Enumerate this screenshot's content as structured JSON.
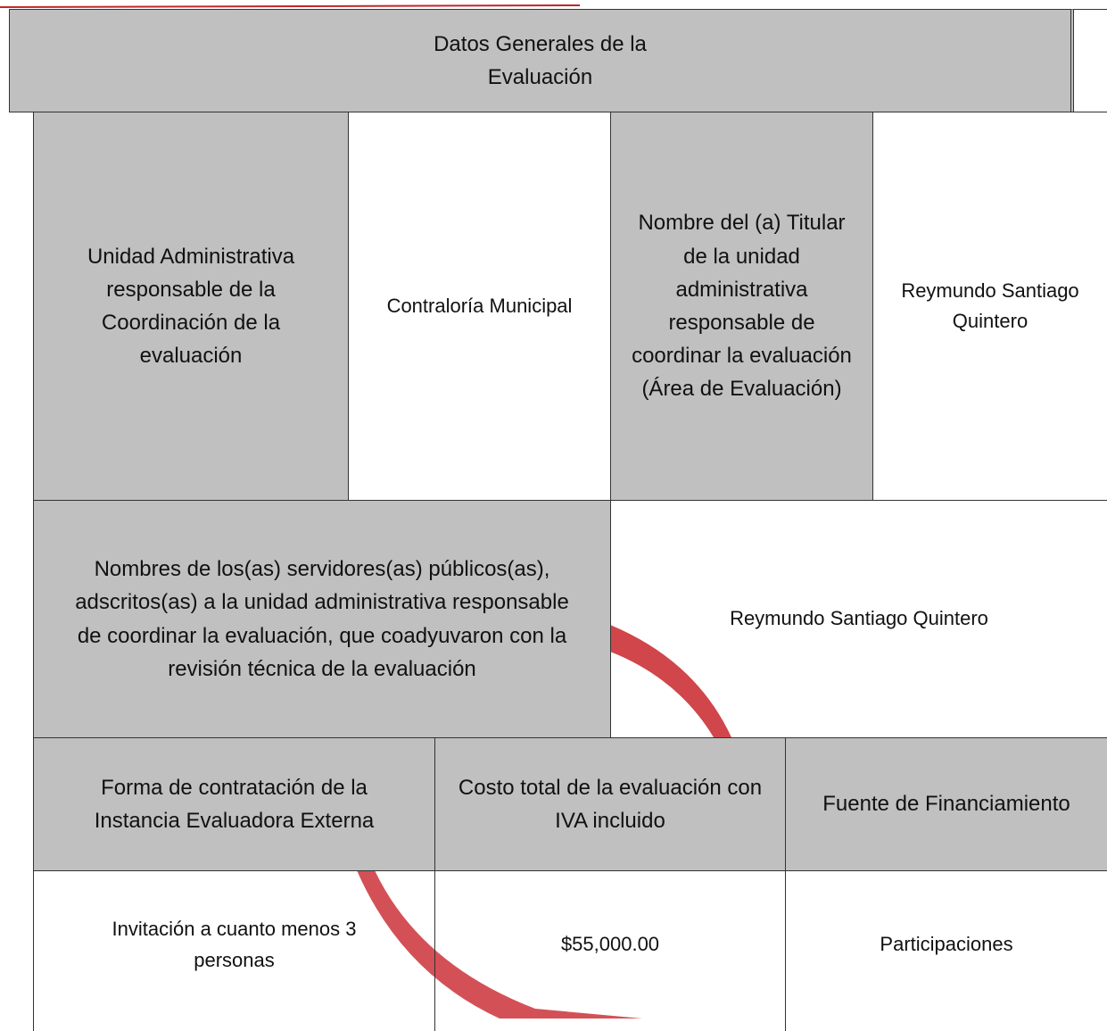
{
  "header": {
    "title": "Datos Generales de la Evaluación"
  },
  "table": {
    "rows": [
      [
        "Unidad Administrativa responsable de la Coordinación de la evaluación",
        "Contraloría Municipal",
        "Nombre del (a) Titular de la unidad administrativa responsable de coordinar la evaluación (Área de Evaluación)",
        "Reymundo Santiago Quintero"
      ],
      [
        "Nombres de los(as) servidores(as) públicos(as), adscritos(as) a la unidad administrativa responsable de coordinar la evaluación, que coadyuvaron con la revisión técnica de la evaluación",
        "Reymundo Santiago Quintero"
      ],
      [
        "Forma de contratación de la Instancia Evaluadora Externa",
        "Costo total de la evaluación con IVA incluido",
        "Fuente de Financiamiento"
      ],
      [
        "Invitación a cuanto menos 3 personas",
        "$55,000.00",
        "Participaciones"
      ]
    ]
  }
}
